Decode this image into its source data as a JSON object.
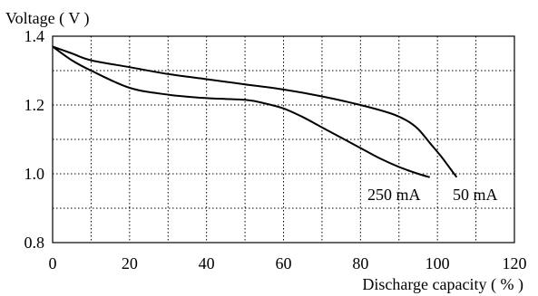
{
  "chart_data": {
    "type": "line",
    "title": "",
    "ylabel": "Voltage ( V )",
    "xlabel": "Discharge  capacity ( % )",
    "xlim": [
      0,
      120
    ],
    "ylim": [
      0.8,
      1.4
    ],
    "x_ticks": [
      0,
      20,
      40,
      60,
      80,
      100,
      120
    ],
    "y_ticks": [
      0.8,
      1.0,
      1.2,
      1.4
    ],
    "x_tick_labels": [
      "0",
      "20",
      "40",
      "60",
      "80",
      "100",
      "120"
    ],
    "y_tick_labels": [
      "0.8",
      "1.0",
      "1.2",
      "1.4"
    ],
    "x_grid": [
      10,
      20,
      30,
      40,
      50,
      60,
      70,
      80,
      90,
      100,
      110
    ],
    "y_grid": [
      0.9,
      1.0,
      1.1,
      1.2,
      1.3
    ],
    "grid": "dotted",
    "line_color": "#000000",
    "grid_color": "#000000",
    "series": [
      {
        "name": "50 mA",
        "x": [
          0,
          5,
          10,
          20,
          30,
          40,
          50,
          60,
          70,
          80,
          88,
          92,
          95,
          98,
          101,
          103,
          105
        ],
        "y": [
          1.37,
          1.35,
          1.33,
          1.31,
          1.29,
          1.275,
          1.26,
          1.245,
          1.225,
          1.2,
          1.175,
          1.155,
          1.13,
          1.09,
          1.05,
          1.02,
          0.99
        ]
      },
      {
        "name": "250 mA",
        "x": [
          0,
          5,
          10,
          20,
          30,
          40,
          50,
          55,
          60,
          65,
          70,
          75,
          80,
          85,
          90,
          95,
          98
        ],
        "y": [
          1.37,
          1.33,
          1.3,
          1.25,
          1.23,
          1.22,
          1.215,
          1.205,
          1.19,
          1.165,
          1.135,
          1.105,
          1.075,
          1.045,
          1.02,
          1.0,
          0.99
        ]
      }
    ]
  }
}
